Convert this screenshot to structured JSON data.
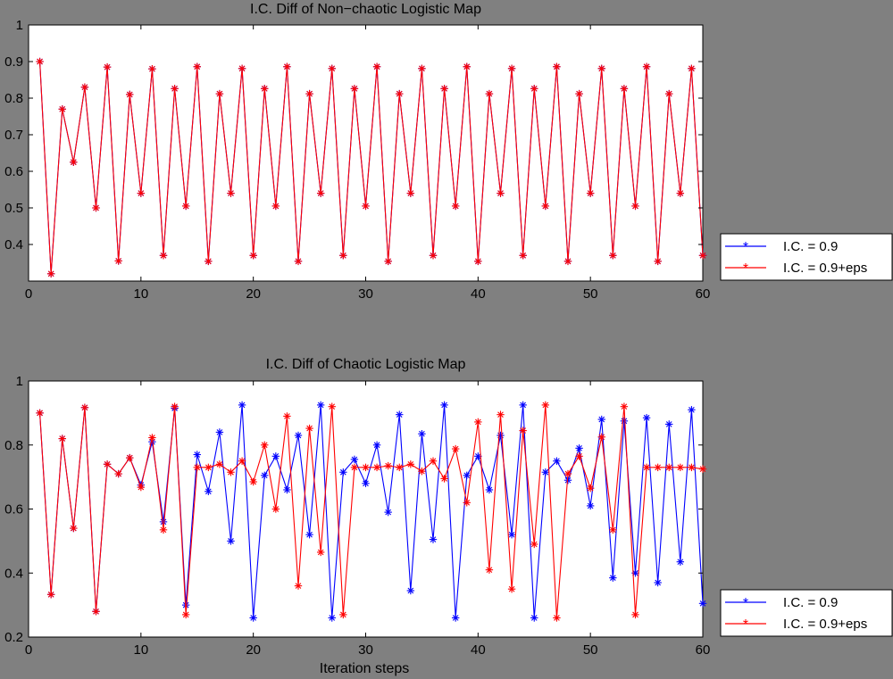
{
  "chart_data": [
    {
      "type": "line",
      "title": "I.C. Diff of Non−chaotic Logistic Map",
      "xlabel": "",
      "ylabel": "",
      "xlim": [
        0,
        60
      ],
      "ylim": [
        0.3,
        1
      ],
      "xticks": [
        0,
        10,
        20,
        30,
        40,
        50,
        60
      ],
      "yticks": [
        0.4,
        0.5,
        0.6,
        0.7,
        0.8,
        0.9,
        1
      ],
      "legend_position": "outside-bottom-right",
      "grid": false,
      "series": [
        {
          "name": "I.C. = 0.9",
          "color": "#0000ff",
          "y": [
            0.9,
            0.32,
            0.77,
            0.625,
            0.83,
            0.5,
            0.885,
            0.355,
            0.81,
            0.54,
            0.88,
            0.37,
            0.826,
            0.505,
            0.886,
            0.354,
            0.812,
            0.54,
            0.881,
            0.37,
            0.826,
            0.505,
            0.886,
            0.354,
            0.812,
            0.54,
            0.881,
            0.37,
            0.826,
            0.505,
            0.886,
            0.354,
            0.812,
            0.54,
            0.881,
            0.37,
            0.826,
            0.505,
            0.886,
            0.354,
            0.812,
            0.54,
            0.881,
            0.37,
            0.826,
            0.505,
            0.886,
            0.354,
            0.812,
            0.54,
            0.881,
            0.37,
            0.826,
            0.505,
            0.886,
            0.354,
            0.812,
            0.54,
            0.881,
            0.37
          ]
        },
        {
          "name": "I.C. = 0.9+eps",
          "color": "#ff0000",
          "y": [
            0.9,
            0.32,
            0.77,
            0.625,
            0.83,
            0.5,
            0.885,
            0.355,
            0.81,
            0.54,
            0.88,
            0.37,
            0.826,
            0.505,
            0.886,
            0.354,
            0.812,
            0.54,
            0.881,
            0.37,
            0.826,
            0.505,
            0.886,
            0.354,
            0.812,
            0.54,
            0.881,
            0.37,
            0.826,
            0.505,
            0.886,
            0.354,
            0.812,
            0.54,
            0.881,
            0.37,
            0.826,
            0.505,
            0.886,
            0.354,
            0.812,
            0.54,
            0.881,
            0.37,
            0.826,
            0.505,
            0.886,
            0.354,
            0.812,
            0.54,
            0.881,
            0.37,
            0.826,
            0.505,
            0.886,
            0.354,
            0.812,
            0.54,
            0.881,
            0.37
          ]
        }
      ]
    },
    {
      "type": "line",
      "title": "I.C. Diff of Chaotic Logistic Map",
      "xlabel": "Iteration steps",
      "ylabel": "",
      "xlim": [
        0,
        60
      ],
      "ylim": [
        0.2,
        1
      ],
      "xticks": [
        0,
        10,
        20,
        30,
        40,
        50,
        60
      ],
      "yticks": [
        0.2,
        0.4,
        0.6,
        0.8,
        1
      ],
      "legend_position": "outside-bottom-right",
      "grid": false,
      "series": [
        {
          "name": "I.C. = 0.9",
          "color": "#0000ff",
          "y": [
            0.9,
            0.333,
            0.82,
            0.54,
            0.917,
            0.28,
            0.74,
            0.71,
            0.76,
            0.675,
            0.81,
            0.56,
            0.915,
            0.3,
            0.77,
            0.655,
            0.84,
            0.5,
            0.925,
            0.26,
            0.705,
            0.765,
            0.66,
            0.83,
            0.52,
            0.925,
            0.26,
            0.715,
            0.755,
            0.68,
            0.8,
            0.59,
            0.895,
            0.345,
            0.835,
            0.505,
            0.925,
            0.26,
            0.705,
            0.765,
            0.66,
            0.83,
            0.52,
            0.925,
            0.26,
            0.715,
            0.75,
            0.69,
            0.79,
            0.61,
            0.88,
            0.385,
            0.875,
            0.4,
            0.885,
            0.37,
            0.865,
            0.435,
            0.91,
            0.305
          ]
        },
        {
          "name": "I.C. = 0.9+eps",
          "color": "#ff0000",
          "y": [
            0.9,
            0.333,
            0.82,
            0.54,
            0.917,
            0.28,
            0.74,
            0.71,
            0.76,
            0.668,
            0.823,
            0.535,
            0.92,
            0.27,
            0.73,
            0.73,
            0.74,
            0.715,
            0.75,
            0.685,
            0.8,
            0.6,
            0.89,
            0.36,
            0.852,
            0.465,
            0.92,
            0.27,
            0.73,
            0.73,
            0.73,
            0.735,
            0.73,
            0.74,
            0.718,
            0.75,
            0.695,
            0.788,
            0.62,
            0.872,
            0.41,
            0.895,
            0.35,
            0.845,
            0.49,
            0.925,
            0.26,
            0.71,
            0.765,
            0.665,
            0.825,
            0.535,
            0.92,
            0.27,
            0.73,
            0.73,
            0.73,
            0.73,
            0.73,
            0.725
          ]
        }
      ]
    }
  ]
}
